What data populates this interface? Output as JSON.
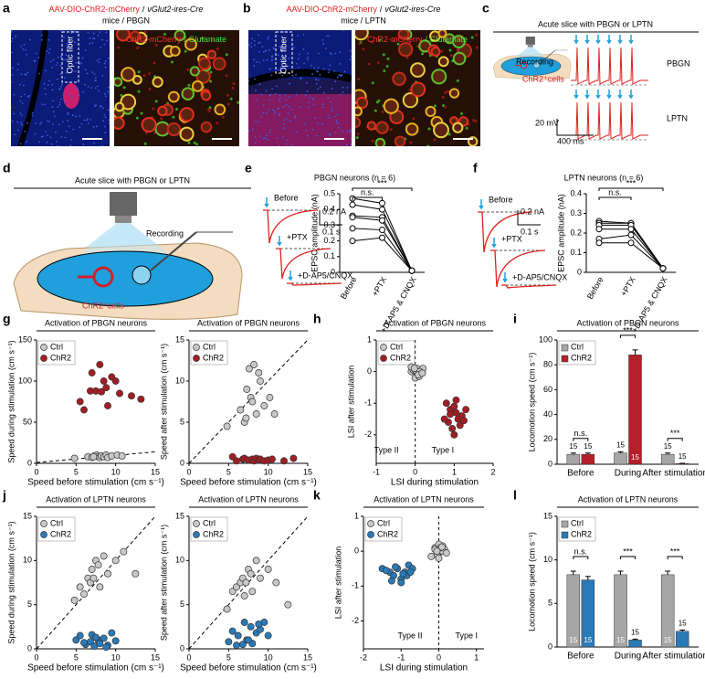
{
  "panel_labels": [
    "a",
    "b",
    "c",
    "d",
    "e",
    "f",
    "g",
    "h",
    "i",
    "j",
    "k",
    "l"
  ],
  "a": {
    "virus": "AAV-DIO-ChR2-mCherry",
    "sep": "/",
    "mouse": "vGlut2-ires-Cre",
    "line2": "mice / PBGN",
    "fiber": "Optic fiber",
    "stain_red": "ChR2-mCherry",
    "stain_green": "/ Glutamate"
  },
  "b": {
    "virus": "AAV-DIO-ChR2-mCherry",
    "sep": "/",
    "mouse": "vGlut2-ires-Cre",
    "line2": "mice / LPTN",
    "fiber": "Optic fiber",
    "stain_red": "ChR2-mCherry",
    "stain_green": "/ Glutamate"
  },
  "c": {
    "title": "Acute slice with PBGN or LPTN",
    "recording": "Recording",
    "cells": "ChR2⁺cells",
    "trace1": "PBGN",
    "trace2": "LPTN",
    "scale_v": "20 mV",
    "scale_t": "400 ms"
  },
  "d": {
    "title": "Acute slice with PBGN or LPTN",
    "recording": "Recording",
    "cells": "ChR2⁺cells"
  },
  "e": {
    "before": "Before",
    "ptx": "+PTX",
    "dap5": "+D-AP5/CNQX",
    "scale_i": "0.2 nA",
    "scale_t": "0.1 s"
  },
  "f": {
    "before": "Before",
    "ptx": "+PTX",
    "dap5": "+D-AP5/CNQX",
    "scale_i": "0.2 nA",
    "scale_t": "0.1 s"
  },
  "chart_data": [
    {
      "type": "paired",
      "title": "PBGN neurons (n = 6)",
      "ylabel": "EPSC amplitude (nA)",
      "categories": [
        "Before",
        "+PTX",
        "+D-AP5 & CNQX"
      ],
      "ylim": [
        0,
        0.5
      ],
      "yticks": [
        0,
        0.1,
        0.2,
        0.3,
        0.4,
        0.5
      ],
      "annotations": [
        "n.s.",
        "***"
      ],
      "series": [
        {
          "values": [
            0.47,
            0.44,
            0.01
          ]
        },
        {
          "values": [
            0.43,
            0.4,
            0.01
          ]
        },
        {
          "values": [
            0.36,
            0.35,
            0.01
          ]
        },
        {
          "values": [
            0.35,
            0.33,
            0.01
          ]
        },
        {
          "values": [
            0.28,
            0.27,
            0.01
          ]
        },
        {
          "values": [
            0.2,
            0.22,
            0.01
          ]
        }
      ]
    },
    {
      "type": "paired",
      "title": "LPTN neurons (n = 6)",
      "ylabel": "EPSC amplitude (nA)",
      "categories": [
        "Before",
        "+PTX",
        "+D-AP5 & CNQX"
      ],
      "ylim": [
        0,
        0.4
      ],
      "yticks": [
        0,
        0.1,
        0.2,
        0.3,
        0.4
      ],
      "annotations": [
        "n.s.",
        "***"
      ],
      "series": [
        {
          "values": [
            0.26,
            0.25,
            0.02
          ]
        },
        {
          "values": [
            0.25,
            0.25,
            0.02
          ]
        },
        {
          "values": [
            0.24,
            0.24,
            0.02
          ]
        },
        {
          "values": [
            0.22,
            0.22,
            0.02
          ]
        },
        {
          "values": [
            0.17,
            0.19,
            0.02
          ]
        },
        {
          "values": [
            0.15,
            0.15,
            0.02
          ]
        }
      ]
    },
    {
      "type": "scatter",
      "title": "Activation of PBGN neurons",
      "xlabel": "Speed before stimulation (cm s⁻¹)",
      "ylabel": "Speed during stimulation (cm s⁻¹)",
      "xlim": [
        0,
        15
      ],
      "xticks": [
        0,
        5,
        10,
        15
      ],
      "ylim": [
        0,
        150
      ],
      "yticks": [
        0,
        50,
        100,
        150
      ],
      "lines": [
        {
          "x": [
            0,
            15
          ],
          "y": [
            1,
            14
          ]
        }
      ],
      "series": [
        {
          "name": "Ctrl",
          "color": "#c8c8c8",
          "x": [
            4.8,
            6.5,
            7,
            7.3,
            7.6,
            7.8,
            8,
            8.2,
            8.5,
            8.8,
            9,
            9.5,
            10.2,
            10.8,
            7.2
          ],
          "y": [
            6,
            8,
            7,
            9,
            10,
            8,
            7,
            9,
            8,
            10,
            7,
            9,
            10,
            9,
            8
          ]
        },
        {
          "name": "ChR2",
          "color": "#a51d24",
          "x": [
            5.5,
            6,
            6.8,
            7,
            7.5,
            8,
            8.2,
            8.5,
            8.8,
            9,
            9.5,
            10,
            10.5,
            12,
            13.2
          ],
          "y": [
            75,
            65,
            88,
            110,
            88,
            120,
            87,
            100,
            92,
            70,
            105,
            100,
            85,
            82,
            78
          ]
        }
      ]
    },
    {
      "type": "scatter",
      "title": "Activation of PBGN neurons",
      "xlabel": "Speed before stimulation (cm s⁻¹)",
      "ylabel": "Speed after stimulation (cm s⁻¹)",
      "xlim": [
        0,
        15
      ],
      "xticks": [
        0,
        5,
        10,
        15
      ],
      "ylim": [
        0,
        15
      ],
      "yticks": [
        0,
        5,
        10,
        15
      ],
      "lines": [
        {
          "x": [
            0,
            15
          ],
          "y": [
            0,
            15
          ]
        }
      ],
      "series": [
        {
          "name": "Ctrl",
          "color": "#c8c8c8",
          "x": [
            4.8,
            6.5,
            7,
            7.3,
            7.6,
            7.8,
            8,
            8.2,
            8.5,
            8.8,
            9,
            9.5,
            10.2,
            10.8,
            7.2
          ],
          "y": [
            4.5,
            6.5,
            5,
            9,
            11.5,
            8,
            7.5,
            12,
            6,
            11,
            10,
            7,
            8,
            6,
            5.5
          ]
        },
        {
          "name": "ChR2",
          "color": "#a51d24",
          "x": [
            5.5,
            6,
            6.8,
            7,
            7.5,
            8,
            8.2,
            8.5,
            8.8,
            9,
            9.5,
            10,
            10.5,
            12,
            13.2
          ],
          "y": [
            0.8,
            0.3,
            0.5,
            0.6,
            0.4,
            0.5,
            0.3,
            0.6,
            0.4,
            0.5,
            0.3,
            0.4,
            0.5,
            0.3,
            0.6
          ]
        }
      ]
    },
    {
      "type": "scatter",
      "title": "Activation of PBGN neurons",
      "xlabel": "LSI during stimulation",
      "ylabel": "LSI after stimulation",
      "xlim": [
        -1,
        2
      ],
      "xticks": [
        -1,
        0,
        1,
        2
      ],
      "ylim": [
        -2.9,
        1
      ],
      "yticks": [
        -2,
        -1,
        0,
        1
      ],
      "vline": 0,
      "annotations": [
        "Type II",
        "Type I"
      ],
      "series": [
        {
          "name": "Ctrl",
          "color": "#c8c8c8",
          "x": [
            -0.1,
            0.05,
            0.1,
            -0.05,
            0,
            0.15,
            0.2,
            0.05,
            -0.1,
            0.1,
            0,
            0.12,
            0.08,
            -0.02,
            0.18
          ],
          "y": [
            0,
            0.1,
            -0.1,
            0.05,
            -0.2,
            0,
            0.1,
            -0.05,
            0.15,
            -0.15,
            0.05,
            0,
            -0.1,
            0.1,
            -0.05
          ]
        },
        {
          "name": "ChR2",
          "color": "#a51d24",
          "x": [
            0.8,
            0.9,
            1,
            1.05,
            1.1,
            0.85,
            0.95,
            1.2,
            1.3,
            1,
            1.15,
            0.75,
            1.05,
            0.9,
            1.25
          ],
          "y": [
            -1,
            -1.2,
            -1.1,
            -1.3,
            -1.5,
            -1.6,
            -1.8,
            -1.4,
            -1.2,
            -2,
            -1.7,
            -1.5,
            -0.9,
            -1.35,
            -1.55
          ]
        }
      ]
    },
    {
      "type": "bar",
      "title": "Activation of PBGN neurons",
      "ylabel": "Locomotion speed (cm s⁻¹)",
      "categories": [
        "Before",
        "During",
        "After stimulation"
      ],
      "ylim": [
        0,
        100
      ],
      "yticks": [
        0,
        20,
        40,
        60,
        80,
        100
      ],
      "annotations": [
        "n.s.",
        "***",
        "***"
      ],
      "series": [
        {
          "name": "Ctrl",
          "color": "#a6a6a6",
          "values": [
            8,
            9,
            8
          ],
          "errors": [
            1,
            1,
            1
          ],
          "n_labels": [
            "15",
            "15",
            "15"
          ]
        },
        {
          "name": "ChR2",
          "color": "#b51f29",
          "values": [
            8,
            88,
            0.5
          ],
          "errors": [
            1,
            4,
            0.2
          ],
          "n_labels": [
            "15",
            "15",
            "15"
          ]
        }
      ]
    },
    {
      "type": "scatter",
      "title": "Activation of LPTN neurons",
      "xlabel": "Speed before stimulation (cm s⁻¹)",
      "ylabel": "Speed during stimulation (cm s⁻¹)",
      "xlim": [
        0,
        15
      ],
      "xticks": [
        0,
        5,
        10,
        15
      ],
      "ylim": [
        0,
        15
      ],
      "yticks": [
        0,
        5,
        10,
        15
      ],
      "lines": [
        {
          "x": [
            0,
            15
          ],
          "y": [
            0,
            15
          ]
        }
      ],
      "series": [
        {
          "name": "Ctrl",
          "color": "#c8c8c8",
          "x": [
            4.8,
            5.5,
            6,
            6.5,
            6.8,
            7,
            7.2,
            7.5,
            7.8,
            8,
            8.5,
            9,
            10,
            11,
            12.5
          ],
          "y": [
            5.5,
            7,
            6.2,
            8,
            7.5,
            9,
            8,
            10,
            9.5,
            7,
            10.5,
            8.5,
            10,
            11,
            8.5
          ]
        },
        {
          "name": "ChR2",
          "color": "#2a7ab8",
          "x": [
            5,
            5.5,
            6.2,
            6.8,
            7,
            7.3,
            7.8,
            8,
            8.5,
            9,
            9.5,
            10,
            6,
            7.5,
            8.8
          ],
          "y": [
            1,
            1.5,
            0.5,
            0.8,
            1.6,
            0.3,
            1,
            0.6,
            1.2,
            0.4,
            1.8,
            0.9,
            0.7,
            1.3,
            0.2
          ]
        }
      ]
    },
    {
      "type": "scatter",
      "title": "Activation of LPTN neurons",
      "xlabel": "Speed before stimulation (cm s⁻¹)",
      "ylabel": "Speed after stimulation (cm s⁻¹)",
      "xlim": [
        0,
        15
      ],
      "xticks": [
        0,
        5,
        10,
        15
      ],
      "ylim": [
        0,
        15
      ],
      "yticks": [
        0,
        5,
        10,
        15
      ],
      "lines": [
        {
          "x": [
            0,
            15
          ],
          "y": [
            0,
            15
          ]
        }
      ],
      "series": [
        {
          "name": "Ctrl",
          "color": "#c8c8c8",
          "x": [
            4.8,
            5.5,
            6,
            6.5,
            6.8,
            7,
            7.2,
            7.5,
            7.8,
            8,
            8.5,
            9,
            10,
            11,
            12.5
          ],
          "y": [
            4.5,
            6.5,
            7,
            7.5,
            8,
            6,
            7.5,
            9,
            8.5,
            6.5,
            10,
            8,
            9,
            7.5,
            5
          ]
        },
        {
          "name": "ChR2",
          "color": "#2a7ab8",
          "x": [
            5,
            5.5,
            6.2,
            6.8,
            7,
            7.3,
            7.8,
            8,
            8.5,
            9,
            9.5,
            10,
            6,
            7.5,
            8.8
          ],
          "y": [
            0.8,
            2,
            1.5,
            0.5,
            3,
            1,
            2.5,
            0.6,
            1.8,
            2.2,
            3,
            1.5,
            0.4,
            1,
            2.8
          ]
        }
      ]
    },
    {
      "type": "scatter",
      "title": "Activation of LPTN neurons",
      "xlabel": "LSI during stimulation",
      "ylabel": "LSI after stimulation",
      "xlim": [
        -2,
        1.2
      ],
      "xticks": [
        -2,
        -1,
        0,
        1
      ],
      "ylim": [
        -2.8,
        1
      ],
      "yticks": [
        -2,
        -1,
        0,
        1
      ],
      "vline": 0,
      "annotations": [
        "Type II",
        "Type I"
      ],
      "series": [
        {
          "name": "Ctrl",
          "color": "#c8c8c8",
          "x": [
            -0.1,
            0,
            0.05,
            0.1,
            -0.05,
            0.15,
            0,
            -0.2,
            0.1,
            0.05,
            -0.1,
            0.2,
            0,
            0.08,
            -0.05
          ],
          "y": [
            0.1,
            -0.05,
            0,
            0.15,
            -0.1,
            0.05,
            0.2,
            -0.15,
            0,
            0.1,
            0.05,
            -0.05,
            -0.2,
            0.12,
            0
          ]
        },
        {
          "name": "ChR2",
          "color": "#2a7ab8",
          "x": [
            -1.5,
            -1.3,
            -1.2,
            -1.1,
            -1,
            -0.9,
            -0.8,
            -0.7,
            -1.4,
            -1,
            -0.85,
            -1.15,
            -0.95,
            -0.75,
            -1.25
          ],
          "y": [
            -0.5,
            -0.6,
            -0.7,
            -0.5,
            -0.8,
            -0.6,
            -0.4,
            -0.5,
            -0.55,
            -0.9,
            -0.7,
            -0.45,
            -0.65,
            -0.6,
            -0.85
          ]
        }
      ]
    },
    {
      "type": "bar",
      "title": "Activation of LPTN neurons",
      "ylabel": "Locomotion speed (cm s⁻¹)",
      "categories": [
        "Before",
        "During",
        "After stimulation"
      ],
      "ylim": [
        0,
        15
      ],
      "yticks": [
        0,
        5,
        10,
        15
      ],
      "annotations": [
        "n.s.",
        "***",
        "***"
      ],
      "series": [
        {
          "name": "Ctrl",
          "color": "#a6a6a6",
          "values": [
            8.3,
            8.3,
            8.3
          ],
          "errors": [
            0.4,
            0.4,
            0.4
          ],
          "n_labels": [
            "15",
            "15",
            "15"
          ]
        },
        {
          "name": "ChR2",
          "color": "#2a7ab8",
          "values": [
            7.7,
            0.8,
            1.8
          ],
          "errors": [
            0.4,
            0.1,
            0.15
          ],
          "n_labels": [
            "15",
            "15",
            "15"
          ]
        }
      ]
    }
  ]
}
